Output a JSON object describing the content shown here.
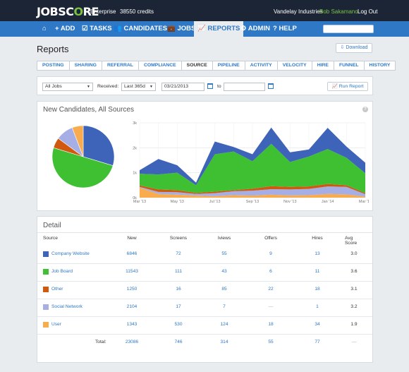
{
  "topbar": {
    "logo_a": "JOBSC",
    "logo_o": "O",
    "logo_b": "RE",
    "plan": "Enterprise",
    "credits": "38550 credits",
    "company": "Vandelay Industries",
    "user": "Bob Sakamano",
    "logout": "Log Out"
  },
  "nav": {
    "items": [
      {
        "icon": "home-icon",
        "label": "⌂"
      },
      {
        "icon": "plus-icon",
        "label": "+ ADD"
      },
      {
        "icon": "tasks-icon",
        "label": "☑ TASKS"
      },
      {
        "icon": "candidates-icon",
        "label": "👥 CANDIDATES"
      },
      {
        "icon": "jobs-icon",
        "label": "💼 JOBS"
      },
      {
        "icon": "reports-icon",
        "label": "📈 REPORTS"
      },
      {
        "icon": "admin-icon",
        "label": "⚙ ADMIN"
      },
      {
        "icon": "help-icon",
        "label": "? HELP"
      }
    ]
  },
  "page": {
    "title": "Reports",
    "download_label": "⇩ Download"
  },
  "tabs": [
    "POSTING",
    "SHARING",
    "REFERRAL",
    "COMPLIANCE",
    "SOURCE",
    "PIPELINE",
    "ACTIVITY",
    "VELOCITY",
    "HIRE",
    "FUNNEL",
    "HISTORY"
  ],
  "active_tab": "SOURCE",
  "filters": {
    "jobs_value": "All Jobs",
    "received_label": "Received:",
    "range_value": "Last 365d",
    "from_value": "03/21/2013",
    "to_label": "to",
    "to_value": "",
    "run_label": "Run Report"
  },
  "chart_section": {
    "title": "New Candidates, All Sources",
    "help": "?"
  },
  "colors": {
    "company_website": "#3d64b8",
    "job_board": "#3fbf32",
    "other": "#d0590f",
    "social_network": "#a6aee6",
    "user": "#f8ac4d",
    "accent": "#2e78c6"
  },
  "chart_data": [
    {
      "type": "pie",
      "labels": [
        "Company Website",
        "Job Board",
        "Other",
        "Social Network",
        "User"
      ],
      "values": [
        6846,
        11543,
        1250,
        2104,
        1343
      ]
    },
    {
      "type": "area",
      "stacked": true,
      "x": [
        "Mar '13",
        "Apr '13",
        "May '13",
        "Jun '13",
        "Jul '13",
        "Aug '13",
        "Sep '13",
        "Oct '13",
        "Nov '13",
        "Dec '13",
        "Jan '14",
        "Feb '14",
        "Mar '14"
      ],
      "x_tick_labels": [
        "Mar '13",
        "May '13",
        "Jul '13",
        "Sep '13",
        "Nov '13",
        "Jan '14",
        "Mar '14"
      ],
      "y_tick_labels": [
        "0k",
        "1k",
        "2k",
        "3k"
      ],
      "ylim": [
        0,
        3000
      ],
      "grid": true,
      "series": [
        {
          "name": "User",
          "values": [
            400,
            150,
            120,
            80,
            60,
            100,
            80,
            120,
            90,
            100,
            150,
            130,
            40
          ]
        },
        {
          "name": "Social Network",
          "values": [
            30,
            80,
            100,
            70,
            120,
            160,
            200,
            220,
            240,
            250,
            300,
            300,
            100
          ]
        },
        {
          "name": "Other",
          "values": [
            60,
            100,
            80,
            40,
            60,
            40,
            80,
            120,
            100,
            100,
            100,
            70,
            40
          ]
        },
        {
          "name": "Job Board",
          "values": [
            470,
            600,
            700,
            310,
            1500,
            1550,
            1100,
            1700,
            1000,
            1200,
            1400,
            1100,
            800
          ]
        },
        {
          "name": "Company Website",
          "values": [
            140,
            620,
            300,
            100,
            510,
            180,
            280,
            650,
            390,
            280,
            850,
            450,
            420
          ]
        }
      ]
    }
  ],
  "detail": {
    "title": "Detail",
    "headers": {
      "source": "Source",
      "new": "New",
      "screens": "Screens",
      "iviews": "Iviews",
      "offers": "Offers",
      "hires": "Hires",
      "avg": "Avg Score"
    },
    "rows": [
      {
        "source": "Company Website",
        "new": "6846",
        "screens": "72",
        "iviews": "55",
        "offers": "9",
        "hires": "13",
        "avg": "3.0"
      },
      {
        "source": "Job Board",
        "new": "11543",
        "screens": "111",
        "iviews": "43",
        "offers": "6",
        "hires": "11",
        "avg": "3.6"
      },
      {
        "source": "Other",
        "new": "1250",
        "screens": "16",
        "iviews": "85",
        "offers": "22",
        "hires": "18",
        "avg": "3.1"
      },
      {
        "source": "Social Network",
        "new": "2104",
        "screens": "17",
        "iviews": "7",
        "offers": "—",
        "hires": "1",
        "avg": "3.2"
      },
      {
        "source": "User",
        "new": "1343",
        "screens": "530",
        "iviews": "124",
        "offers": "18",
        "hires": "34",
        "avg": "1.9"
      }
    ],
    "total": {
      "label": "Total:",
      "new": "23086",
      "screens": "746",
      "iviews": "314",
      "offers": "55",
      "hires": "77",
      "avg": "—"
    }
  }
}
